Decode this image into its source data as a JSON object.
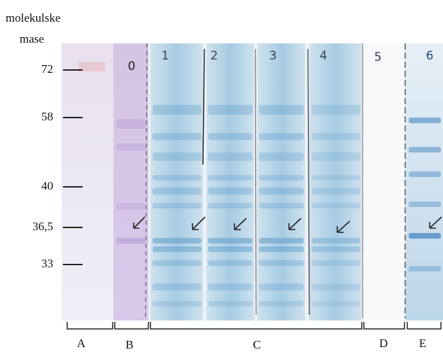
{
  "axis": {
    "title_lines": [
      "molekulske",
      "mase"
    ],
    "markers": [
      "72",
      "58",
      "40",
      "36,5",
      "33"
    ]
  },
  "lanes": [
    "0",
    "1",
    "2",
    "3",
    "4",
    "5",
    "6"
  ],
  "groups": [
    "A",
    "B",
    "C",
    "D",
    "E"
  ]
}
